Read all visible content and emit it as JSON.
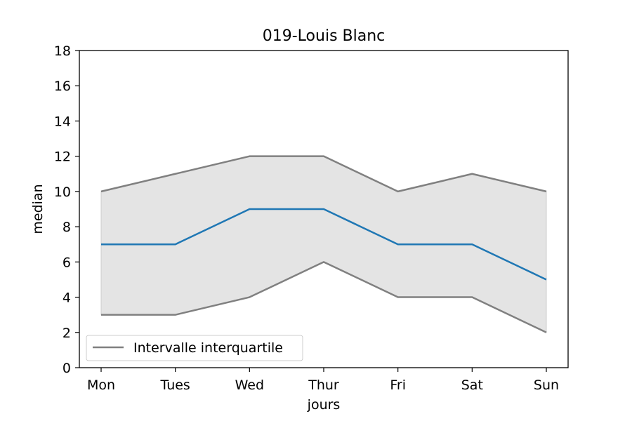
{
  "chart_data": {
    "type": "line",
    "title": "019-Louis Blanc",
    "xlabel": "jours",
    "ylabel": "median",
    "categories": [
      "Mon",
      "Tues",
      "Wed",
      "Thur",
      "Fri",
      "Sat",
      "Sun"
    ],
    "ylim": [
      0,
      18
    ],
    "yticks": [
      "0",
      "2",
      "4",
      "6",
      "8",
      "10",
      "12",
      "14",
      "16",
      "18"
    ],
    "grid": false,
    "legend_position": "lower-left",
    "series": [
      {
        "role": "median",
        "values": [
          7,
          7,
          9,
          9,
          7,
          7,
          5
        ],
        "color": "#1f77b4"
      },
      {
        "role": "q1",
        "values": [
          3,
          3,
          4,
          6,
          4,
          4,
          2
        ],
        "color": "#808080"
      },
      {
        "role": "q3",
        "values": [
          10,
          11,
          12,
          12,
          10,
          11,
          10
        ],
        "color": "#808080"
      }
    ],
    "band": {
      "lower": "q1",
      "upper": "q3",
      "fill": "#e4e4e4",
      "edge": "#cccccc"
    },
    "legend": [
      {
        "label": "Intervalle interquartile",
        "color": "#808080"
      }
    ]
  }
}
